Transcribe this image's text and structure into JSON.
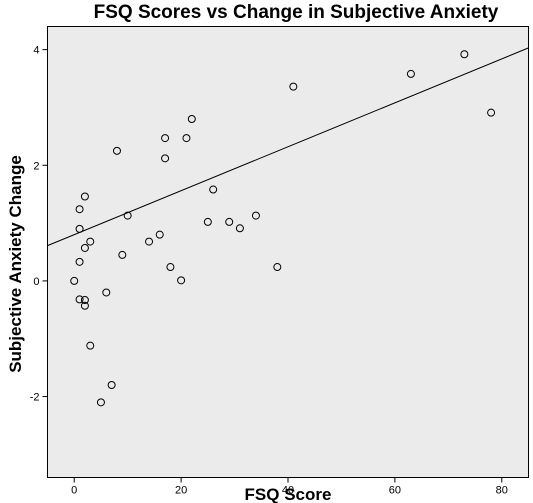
{
  "chart_data": {
    "type": "scatter",
    "title": "FSQ Scores vs Change in Subjective Anxiety",
    "xlabel": "FSQ Score",
    "ylabel": "Subjective Anxiety Change",
    "xlim": [
      -5,
      85
    ],
    "ylim": [
      -3.4,
      4.4
    ],
    "x_ticks": [
      0,
      20,
      40,
      60,
      80
    ],
    "y_ticks": [
      -2,
      0,
      2,
      4
    ],
    "x_tick_labels": [
      "0",
      "20",
      "40",
      "60",
      "80"
    ],
    "y_tick_labels": [
      "-2",
      "0",
      "2",
      "4"
    ],
    "grid": false,
    "legend": null,
    "point_style": "open circle",
    "background_color": "#ebebeb",
    "points": [
      {
        "x": 0,
        "y": 0.0
      },
      {
        "x": 1,
        "y": 0.33
      },
      {
        "x": 1,
        "y": 0.9
      },
      {
        "x": 1,
        "y": 1.24
      },
      {
        "x": 1,
        "y": -0.32
      },
      {
        "x": 2,
        "y": 1.46
      },
      {
        "x": 2,
        "y": 0.57
      },
      {
        "x": 2,
        "y": -0.33
      },
      {
        "x": 2,
        "y": -0.43
      },
      {
        "x": 3,
        "y": 0.68
      },
      {
        "x": 3,
        "y": -1.12
      },
      {
        "x": 5,
        "y": -2.1
      },
      {
        "x": 6,
        "y": -0.2
      },
      {
        "x": 7,
        "y": -1.8
      },
      {
        "x": 8,
        "y": 2.25
      },
      {
        "x": 9,
        "y": 0.45
      },
      {
        "x": 10,
        "y": 1.13
      },
      {
        "x": 14,
        "y": 0.68
      },
      {
        "x": 16,
        "y": 0.8
      },
      {
        "x": 17,
        "y": 2.12
      },
      {
        "x": 17,
        "y": 2.47
      },
      {
        "x": 18,
        "y": 0.24
      },
      {
        "x": 20,
        "y": 0.01
      },
      {
        "x": 21,
        "y": 2.47
      },
      {
        "x": 22,
        "y": 2.8
      },
      {
        "x": 25,
        "y": 1.02
      },
      {
        "x": 26,
        "y": 1.58
      },
      {
        "x": 29,
        "y": 1.02
      },
      {
        "x": 31,
        "y": 0.91
      },
      {
        "x": 34,
        "y": 1.13
      },
      {
        "x": 38,
        "y": 0.24
      },
      {
        "x": 41,
        "y": 3.36
      },
      {
        "x": 63,
        "y": 3.58
      },
      {
        "x": 73,
        "y": 3.92
      },
      {
        "x": 78,
        "y": 2.91
      }
    ],
    "fit_line": {
      "type": "linear",
      "intercept": 0.8,
      "slope": 0.038
    }
  }
}
